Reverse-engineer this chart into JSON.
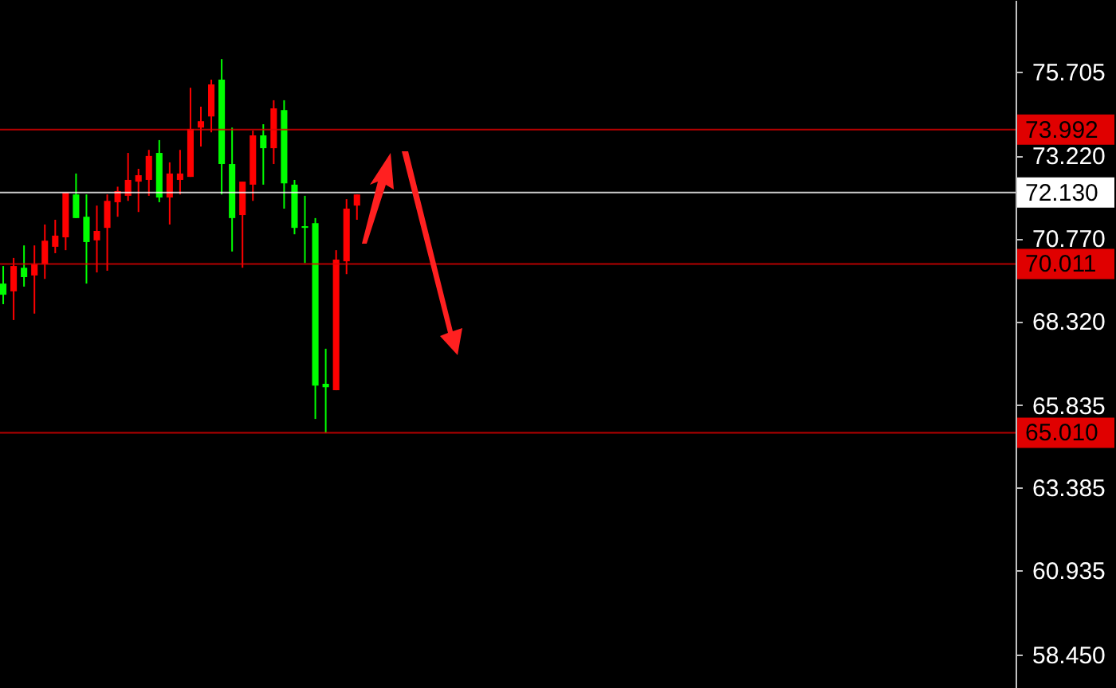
{
  "chart_data": {
    "type": "candlestick",
    "categories": [
      null,
      null,
      null,
      null,
      null,
      null,
      null,
      null,
      null,
      null,
      null,
      null,
      null,
      null,
      null,
      null,
      null,
      null,
      null,
      null,
      null,
      null,
      null,
      null,
      null,
      null,
      null,
      null,
      null,
      null,
      null,
      null,
      null,
      null,
      null,
      null,
      null,
      null,
      null,
      null,
      null,
      null,
      null,
      null,
      null,
      null,
      null,
      null,
      null,
      null,
      null,
      null,
      null,
      null,
      null,
      null,
      null,
      null,
      null,
      null,
      null,
      null,
      null,
      null,
      null,
      null,
      null,
      null,
      null,
      null,
      null,
      null,
      null,
      null,
      null,
      null,
      null,
      null,
      null,
      null,
      null,
      null,
      null,
      null,
      null,
      null,
      null,
      null,
      null,
      null,
      null,
      null,
      null,
      null,
      null,
      null,
      null,
      null
    ],
    "ohlc": [
      [
        69.43,
        69.95,
        68.82,
        69.1
      ],
      [
        69.2,
        70.19,
        68.35,
        69.95
      ],
      [
        69.9,
        70.56,
        69.34,
        69.62
      ],
      [
        69.67,
        70.56,
        68.54,
        70.0
      ],
      [
        70.0,
        71.18,
        69.57,
        70.7
      ],
      [
        70.52,
        71.32,
        70.33,
        70.85
      ],
      [
        70.8,
        72.12,
        70.42,
        72.12
      ],
      [
        72.07,
        72.69,
        71.37,
        71.37
      ],
      [
        71.41,
        72.07,
        69.43,
        70.66
      ],
      [
        70.71,
        71.74,
        69.76,
        70.99
      ],
      [
        71.08,
        72.07,
        69.81,
        71.88
      ],
      [
        71.84,
        72.3,
        71.41,
        72.17
      ],
      [
        72.03,
        73.3,
        71.88,
        72.5
      ],
      [
        72.45,
        72.83,
        71.55,
        72.64
      ],
      [
        72.5,
        73.39,
        72.03,
        73.21
      ],
      [
        73.3,
        73.68,
        71.84,
        71.98
      ],
      [
        71.98,
        73.02,
        71.18,
        72.69
      ],
      [
        72.5,
        73.39,
        72.07,
        72.69
      ],
      [
        72.59,
        75.23,
        72.59,
        74.01
      ],
      [
        74.05,
        74.67,
        73.49,
        74.24
      ],
      [
        74.38,
        75.47,
        73.91,
        75.33
      ],
      [
        75.47,
        76.08,
        72.07,
        72.97
      ],
      [
        72.97,
        74.05,
        70.38,
        71.37
      ],
      [
        71.46,
        72.45,
        69.9,
        72.45
      ],
      [
        72.36,
        73.96,
        71.88,
        73.82
      ],
      [
        73.82,
        74.15,
        72.36,
        73.44
      ],
      [
        73.44,
        74.86,
        72.97,
        74.62
      ],
      [
        74.57,
        74.86,
        71.65,
        72.4
      ],
      [
        72.36,
        72.5,
        70.89,
        71.08
      ],
      [
        71.13,
        72.03,
        70.04,
        71.08
      ],
      [
        71.22,
        71.37,
        65.42,
        66.41
      ],
      [
        66.46,
        67.5,
        65.01,
        66.36
      ],
      [
        66.27,
        70.42,
        66.27,
        70.14
      ],
      [
        70.09,
        71.93,
        69.71,
        71.65
      ],
      [
        71.74,
        72.07,
        71.32,
        72.07
      ],
      null,
      null,
      null,
      null,
      null,
      null,
      null,
      null,
      null,
      null,
      null,
      null,
      null,
      null,
      null,
      null,
      null,
      null,
      null,
      null,
      null,
      null,
      null,
      null,
      null,
      null,
      null,
      null,
      null,
      null,
      null,
      null,
      null,
      null,
      null,
      null,
      null,
      null,
      null,
      null,
      null,
      null,
      null,
      null,
      null,
      null,
      null,
      null,
      null,
      null,
      null,
      null,
      null,
      null,
      null,
      null,
      null,
      null,
      null,
      null,
      null,
      null,
      null
    ],
    "colors": [
      "#00ff00",
      "#ff0000",
      "#00ff00",
      "#ff0000",
      "#ff0000",
      "#ff0000",
      "#ff0000",
      "#00ff00",
      "#00ff00",
      "#ff0000",
      "#ff0000",
      "#ff0000",
      "#ff0000",
      "#ff0000",
      "#ff0000",
      "#00ff00",
      "#ff0000",
      "#ff0000",
      "#ff0000",
      "#ff0000",
      "#ff0000",
      "#00ff00",
      "#00ff00",
      "#ff0000",
      "#ff0000",
      "#00ff00",
      "#ff0000",
      "#00ff00",
      "#00ff00",
      "#00ff00",
      "#00ff00",
      "#00ff00",
      "#ff0000",
      "#ff0000",
      "#ff0000",
      null,
      null,
      null,
      null,
      null,
      null,
      null,
      null,
      null,
      null,
      null,
      null,
      null,
      null,
      null,
      null,
      null,
      null,
      null,
      null,
      null,
      null,
      null,
      null,
      null,
      null,
      null,
      null,
      null,
      null,
      null,
      null,
      null,
      null,
      null,
      null,
      null,
      null,
      null,
      null,
      null,
      null,
      null,
      null,
      null,
      null,
      null,
      null,
      null,
      null,
      null,
      null,
      null,
      null,
      null,
      null,
      null,
      null,
      null,
      null,
      null,
      null,
      null
    ],
    "ylim": [
      57.45,
      77.83
    ],
    "yticks": [
      75.705,
      {
        "value": 73.22,
        "label": "73.220"
      },
      {
        "value": 70.77,
        "label": "70.770"
      },
      {
        "value": 68.32,
        "label": "68.320"
      },
      65.835,
      63.385,
      60.935,
      {
        "value": 58.45,
        "label": "58.450"
      }
    ],
    "ref_lines": [
      {
        "axis": "y",
        "value": 73.992,
        "label": "73.992",
        "color": "#e00000"
      },
      {
        "axis": "y",
        "value": 72.13,
        "label": "72.130",
        "color": "#ffffff"
      },
      {
        "axis": "y",
        "value": 70.011,
        "label": "70.011",
        "color": "#e00000"
      },
      {
        "axis": "y",
        "value": 65.01,
        "label": "65.010",
        "color": "#e00000"
      }
    ],
    "tick_labels": "y"
  }
}
